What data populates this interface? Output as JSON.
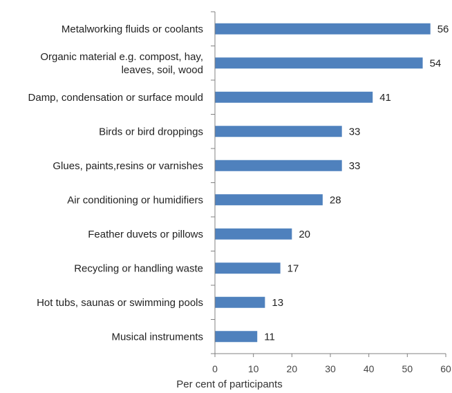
{
  "chart_data": {
    "type": "bar",
    "orientation": "horizontal",
    "categories": [
      [
        "Metalworking fluids or coolants"
      ],
      [
        "Organic material e.g. compost, hay,",
        "leaves, soil, wood"
      ],
      [
        "Damp, condensation or surface mould"
      ],
      [
        "Birds or bird droppings"
      ],
      [
        "Glues, paints,resins or varnishes"
      ],
      [
        "Air conditioning or humidifiers"
      ],
      [
        "Feather duvets or pillows"
      ],
      [
        "Recycling or handling waste"
      ],
      [
        "Hot tubs, saunas or swimming pools"
      ],
      [
        "Musical instruments"
      ]
    ],
    "values": [
      56,
      54,
      41,
      33,
      33,
      28,
      20,
      17,
      13,
      11
    ],
    "xlabel": "Per cent of participants",
    "ylabel": "",
    "title": "",
    "xlim": [
      0,
      60
    ],
    "xticks": [
      0,
      10,
      20,
      30,
      40,
      50,
      60
    ],
    "grid": false,
    "bar_color": "#4f81bd"
  }
}
